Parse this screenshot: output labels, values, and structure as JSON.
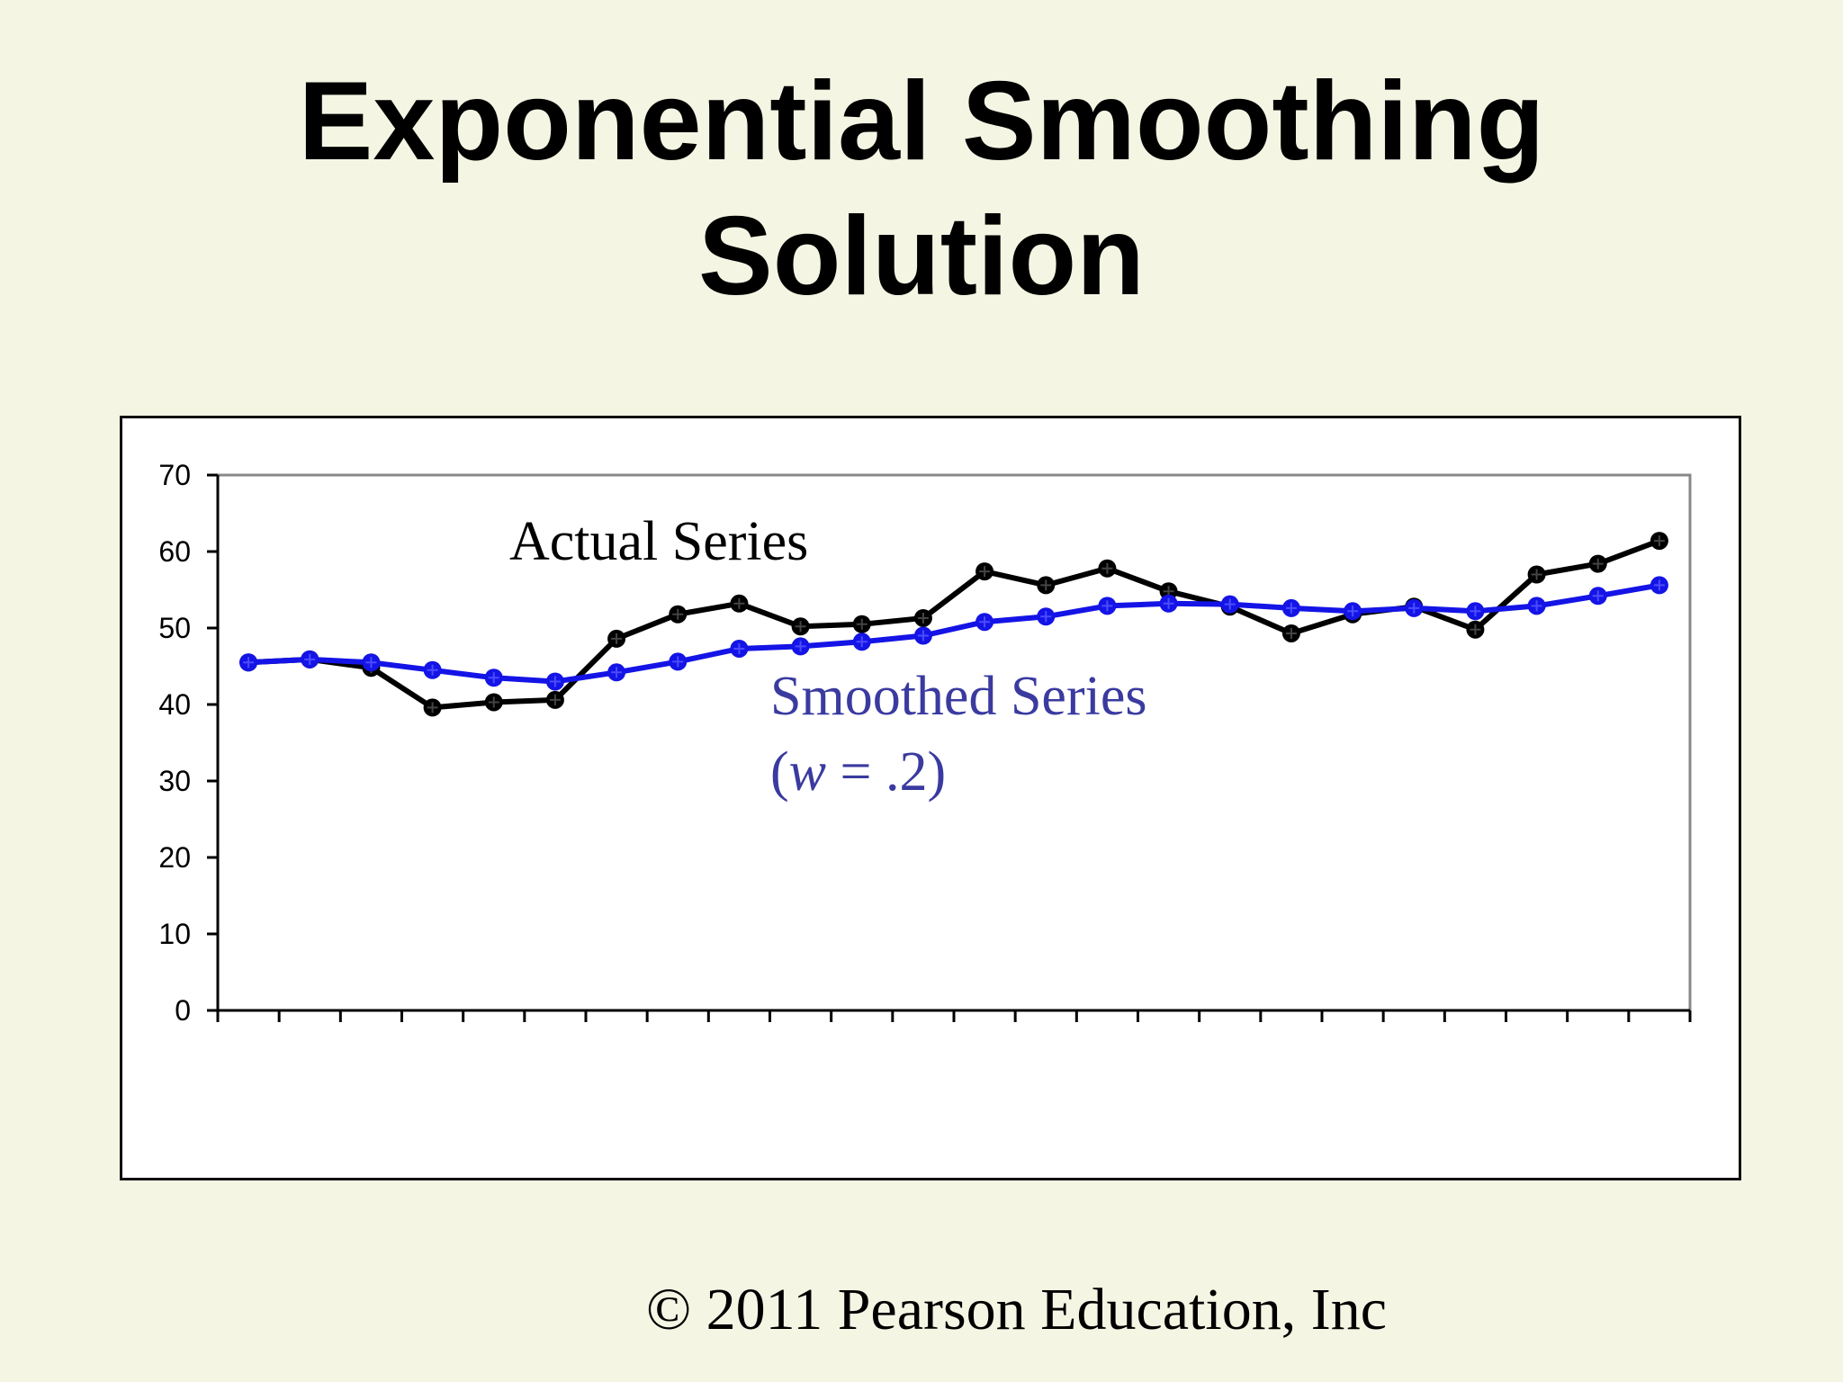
{
  "slide": {
    "title_line1": "Exponential Smoothing",
    "title_line2": "Solution",
    "footer": "© 2011 Pearson Education, Inc"
  },
  "chart_data": {
    "type": "line",
    "title": "",
    "xlabel": "",
    "ylabel": "",
    "ylim": [
      0,
      70
    ],
    "yticks": [
      "0",
      "10",
      "20",
      "30",
      "40",
      "50",
      "60",
      "70"
    ],
    "x_tick_count": 24,
    "grid": false,
    "annotations": {
      "actual_label": "Actual Series",
      "smoothed_label_line1": "Smoothed Series",
      "smoothed_label_line2_open": "(",
      "smoothed_label_line2_var": "w",
      "smoothed_label_line2_rest": " = .2)"
    },
    "colors": {
      "actual": "#000000",
      "smoothed": "#1414e6",
      "smoothed_annotation": "#3a3aa0"
    },
    "series": [
      {
        "key": "actual",
        "values": [
          45.5,
          45.9,
          44.8,
          39.6,
          40.3,
          40.6,
          48.6,
          51.8,
          53.2,
          50.2,
          50.5,
          51.3,
          57.4,
          55.6,
          57.8,
          54.8,
          52.8,
          49.3,
          51.8,
          52.8,
          49.8,
          57.0,
          58.4,
          61.4
        ]
      },
      {
        "key": "smoothed",
        "values": [
          45.5,
          45.9,
          45.5,
          44.5,
          43.5,
          43.0,
          44.2,
          45.6,
          47.3,
          47.6,
          48.2,
          49.0,
          50.8,
          51.5,
          52.9,
          53.2,
          53.1,
          52.6,
          52.2,
          52.6,
          52.2,
          52.9,
          54.2,
          55.6
        ]
      }
    ]
  }
}
